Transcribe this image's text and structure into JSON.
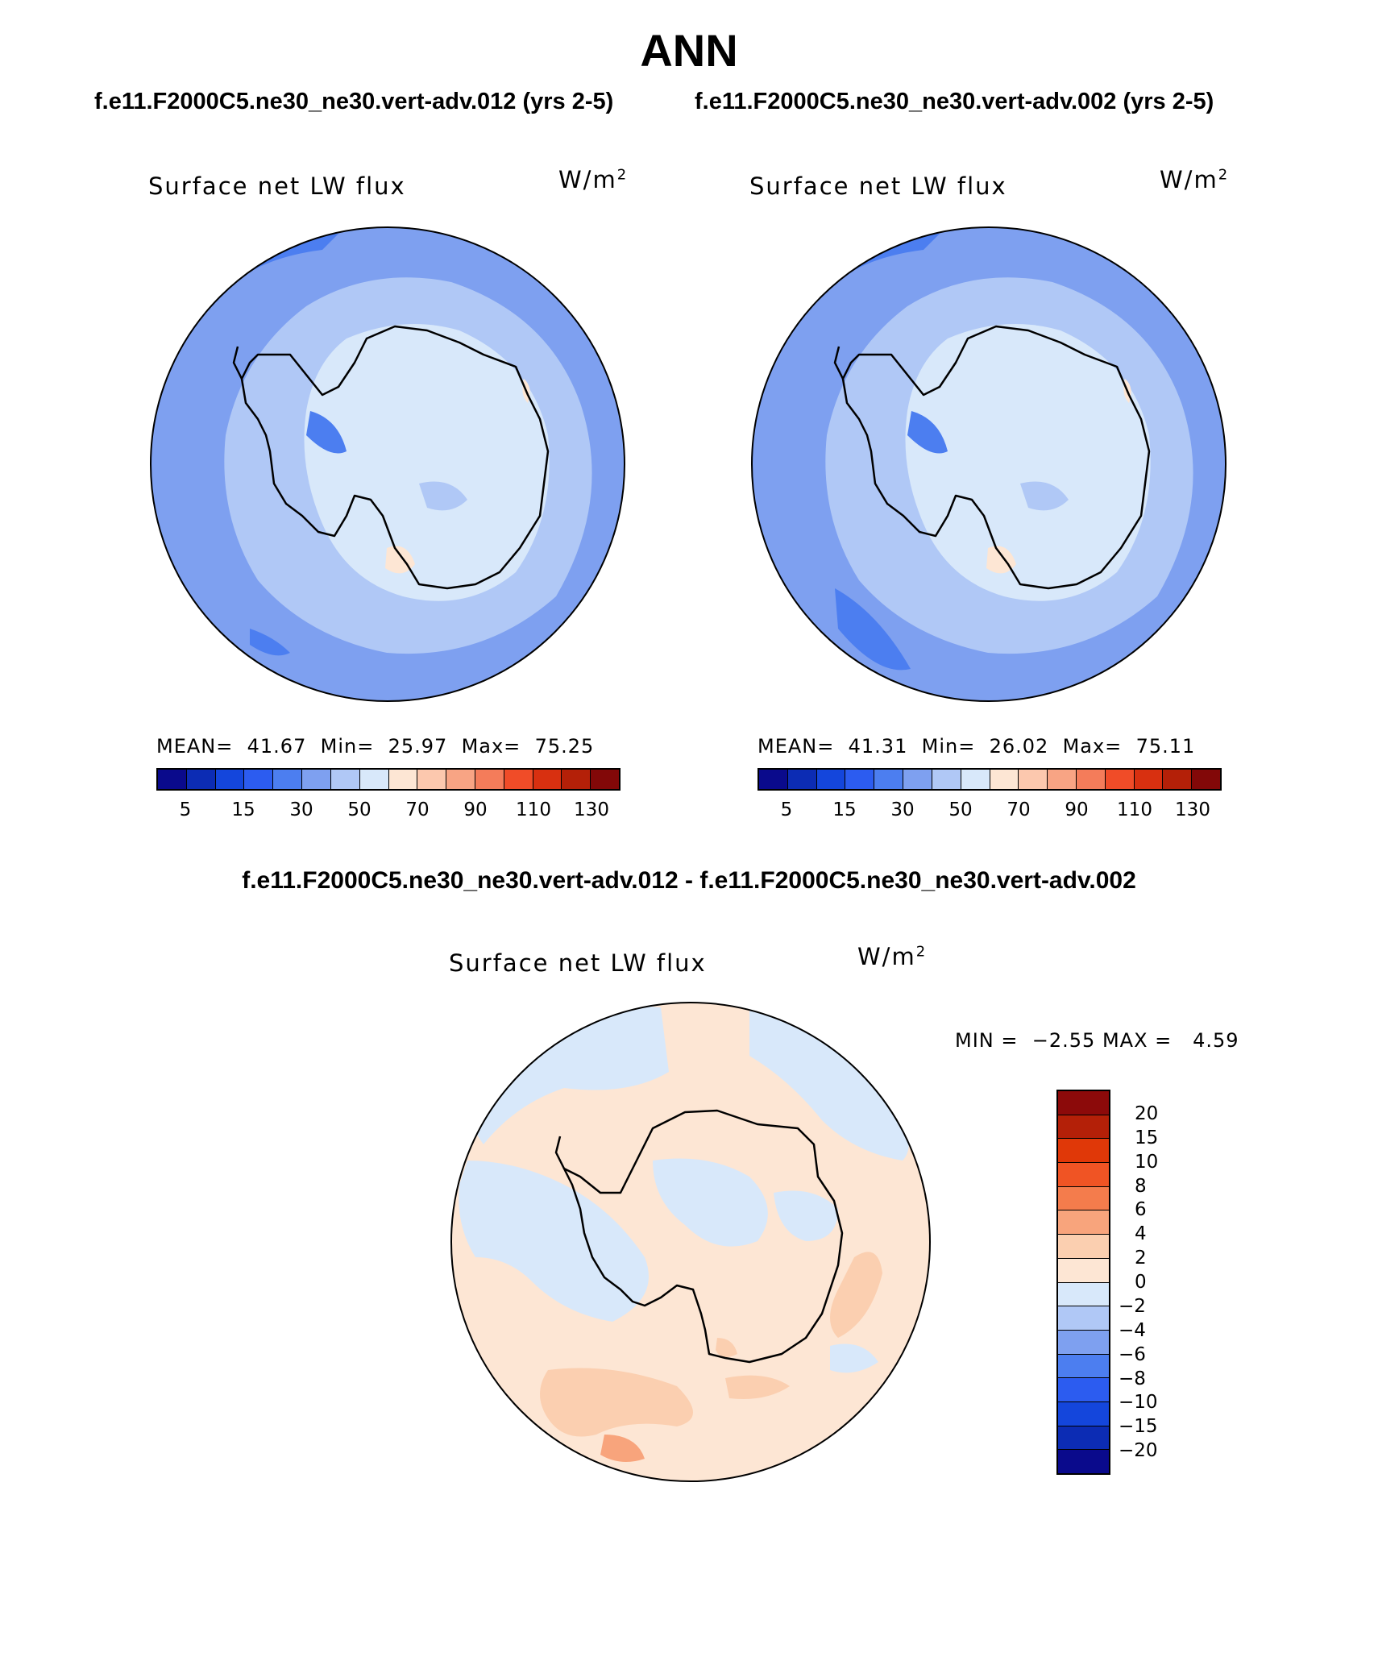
{
  "figure": {
    "season": "ANN",
    "panel_left": {
      "case": "f.e11.F2000C5.ne30_ne30.vert-adv.012 (yrs 2-5)",
      "variable": "Surface net LW flux",
      "units_base": "W/m",
      "units_exp": "2",
      "mean_label": "MEAN=",
      "mean_value": "41.67",
      "min_label": "Min=",
      "min_value": "25.97",
      "max_label": "Max=",
      "max_value": "75.25"
    },
    "panel_right": {
      "case": "f.e11.F2000C5.ne30_ne30.vert-adv.002 (yrs 2-5)",
      "variable": "Surface net LW flux",
      "units_base": "W/m",
      "units_exp": "2",
      "mean_label": "MEAN=",
      "mean_value": "41.31",
      "min_label": "Min=",
      "min_value": "26.02",
      "max_label": "Max=",
      "max_value": "75.11"
    },
    "panel_diff": {
      "title": "f.e11.F2000C5.ne30_ne30.vert-adv.012 - f.e11.F2000C5.ne30_ne30.vert-adv.002",
      "variable": "Surface net LW flux",
      "units_base": "W/m",
      "units_exp": "2",
      "min_label": "MIN =",
      "min_value": "−2.55",
      "max_label": "MAX =",
      "max_value": "4.59"
    },
    "colorbar_main": {
      "colors": [
        "#0a0a8c",
        "#0c2cb4",
        "#1446dc",
        "#2c5cf0",
        "#4c7ef0",
        "#7ea0f0",
        "#b0c8f6",
        "#d8e8fa",
        "#fde6d4",
        "#fcc8ae",
        "#f8a484",
        "#f47c5a",
        "#f04c28",
        "#d83010",
        "#b42008",
        "#820808"
      ],
      "tick_labels": [
        "5",
        "15",
        "30",
        "50",
        "70",
        "90",
        "110",
        "130"
      ]
    },
    "colorbar_diff": {
      "colors": [
        "#8c0a0a",
        "#b42008",
        "#e03808",
        "#f05424",
        "#f47c4c",
        "#f8a47c",
        "#fbcfb0",
        "#fde6d4",
        "#d8e8fa",
        "#b0c8f6",
        "#7ea0f0",
        "#4c7ef0",
        "#2c5cf0",
        "#1446dc",
        "#0c2cb4",
        "#0a0a8c"
      ],
      "tick_labels": [
        "20",
        "15",
        "10",
        "8",
        "6",
        "4",
        "2",
        "0",
        "−2",
        "−4",
        "−6",
        "−8",
        "−10",
        "−15",
        "−20"
      ]
    }
  },
  "chart_data": [
    {
      "type": "heatmap",
      "title": "Surface net LW flux",
      "subtitle": "f.e11.F2000C5.ne30_ne30.vert-adv.012 (yrs 2-5)",
      "units": "W/m2",
      "projection": "south polar stereographic",
      "mean": 41.67,
      "min": 25.97,
      "max": 75.25,
      "contour_levels": [
        5,
        10,
        15,
        20,
        30,
        40,
        50,
        60,
        70,
        80,
        90,
        100,
        110,
        120,
        130
      ],
      "colorbar_ticks": [
        5,
        15,
        30,
        50,
        70,
        90,
        110,
        130
      ]
    },
    {
      "type": "heatmap",
      "title": "Surface net LW flux",
      "subtitle": "f.e11.F2000C5.ne30_ne30.vert-adv.002 (yrs 2-5)",
      "units": "W/m2",
      "projection": "south polar stereographic",
      "mean": 41.31,
      "min": 26.02,
      "max": 75.11,
      "contour_levels": [
        5,
        10,
        15,
        20,
        30,
        40,
        50,
        60,
        70,
        80,
        90,
        100,
        110,
        120,
        130
      ],
      "colorbar_ticks": [
        5,
        15,
        30,
        50,
        70,
        90,
        110,
        130
      ]
    },
    {
      "type": "heatmap",
      "title": "Surface net LW flux",
      "subtitle": "f.e11.F2000C5.ne30_ne30.vert-adv.012 - f.e11.F2000C5.ne30_ne30.vert-adv.002",
      "units": "W/m2",
      "projection": "south polar stereographic",
      "min": -2.55,
      "max": 4.59,
      "contour_levels": [
        -20,
        -15,
        -10,
        -8,
        -6,
        -4,
        -2,
        0,
        2,
        4,
        6,
        8,
        10,
        15,
        20
      ]
    }
  ]
}
